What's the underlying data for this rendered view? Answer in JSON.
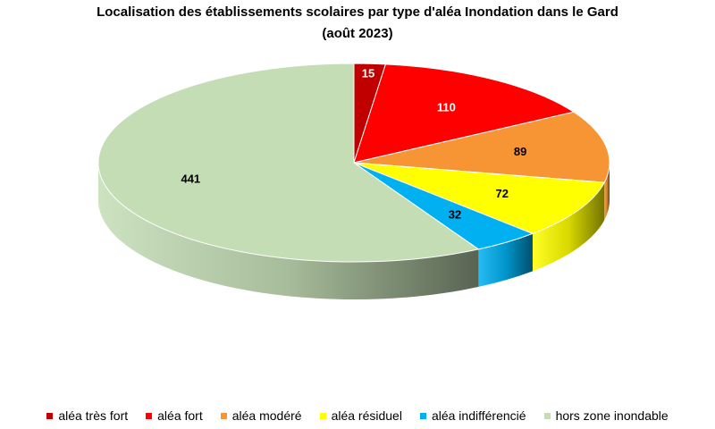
{
  "chart_data": {
    "type": "pie",
    "title": {
      "line1": "Localisation des établissements scolaires par type d'aléa Inondation dans le Gard",
      "line2": "(août 2023)"
    },
    "series": [
      {
        "name": "aléa très fort",
        "value": 15,
        "label": "15",
        "color": "#C00000"
      },
      {
        "name": "aléa fort",
        "value": 110,
        "label": "110",
        "color": "#FF0000"
      },
      {
        "name": "aléa modéré",
        "value": 89,
        "label": "89",
        "color": "#F79433"
      },
      {
        "name": "aléa résiduel",
        "value": 72,
        "label": "72",
        "color": "#FFFF00"
      },
      {
        "name": "aléa indifférencié",
        "value": 32,
        "label": "32",
        "color": "#00B0F0"
      },
      {
        "name": "hors zone inondable",
        "value": 441,
        "label": "441",
        "color": "#C4DDB5"
      }
    ],
    "start": "top",
    "direction": "clockwise",
    "legend_position": "bottom",
    "style": "3d"
  }
}
